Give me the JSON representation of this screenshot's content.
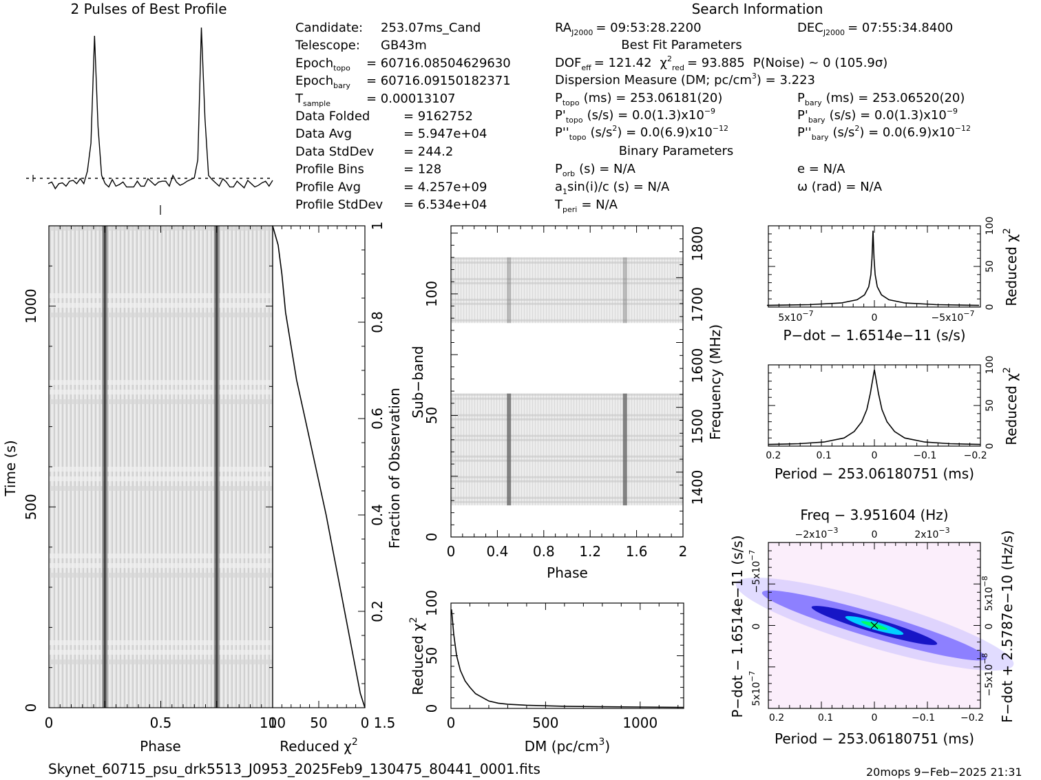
{
  "profile": {
    "title": "2 Pulses of Best Profile",
    "points": [
      0.04,
      0.06,
      0.03,
      0.07,
      0.05,
      0.04,
      0.08,
      0.06,
      0.05,
      0.09,
      0.07,
      0.12,
      0.3,
      0.95,
      0.4,
      0.1,
      0.06,
      0.05,
      0.07,
      0.04,
      0.06,
      0.05,
      0.03,
      0.04,
      0.05,
      0.06,
      0.04,
      0.05,
      0.07,
      0.06,
      0.05,
      0.08,
      0.06,
      0.07,
      0.05,
      0.09,
      0.06,
      0.05,
      0.07,
      0.06,
      0.08,
      0.1,
      0.2,
      1.0,
      0.45,
      0.12,
      0.07,
      0.06,
      0.05,
      0.07,
      0.06,
      0.04,
      0.05,
      0.06,
      0.05,
      0.04,
      0.06,
      0.05,
      0.04,
      0.06,
      0.05,
      0.07,
      0.05,
      0.06
    ]
  },
  "info": {
    "left": [
      {
        "label": "Candidate:",
        "value": "253.07ms_Cand"
      },
      {
        "label": "Telescope:",
        "value": "GB43m"
      },
      {
        "label": "Epoch",
        "sub": "topo",
        "value": "= 60716.08504629630"
      },
      {
        "label": "Epoch",
        "sub": "bary",
        "value": "= 60716.09150182371"
      },
      {
        "label": "T",
        "sub": "sample",
        "value": "=   0.00013107"
      },
      {
        "label": "Data Folded",
        "value": "=   9162752"
      },
      {
        "label": "Data Avg",
        "value": "=   5.947e+04"
      },
      {
        "label": "Data StdDev",
        "value": "=   244.2"
      },
      {
        "label": "Profile Bins",
        "value": "=   128"
      },
      {
        "label": "Profile Avg",
        "value": "=   4.257e+09"
      },
      {
        "label": "Profile StdDev",
        "value": "=   6.534e+04"
      }
    ],
    "search_title": "Search Information",
    "ra": {
      "label": "RA",
      "sub": "J2000",
      "value": "= 09:53:28.2200"
    },
    "dec": {
      "label": "DEC",
      "sub": "J2000",
      "value": "= 07:55:34.8400"
    },
    "best_fit_title": "Best Fit Parameters",
    "dof_line": "DOF",
    "dof_sub": "eff",
    "dof_value": "= 121.42",
    "chi_label": "χ",
    "chi_sup": "2",
    "chi_sub": "red",
    "chi_value": "= 93.885",
    "pnoise": "P(Noise) ~ 0    (105.9σ)",
    "dm_line": "Dispersion Measure (DM; pc/cm",
    "dm_sup": "3",
    "dm_value": ") = 3.223",
    "ptopo_label": "P",
    "ptopo_sub": "topo",
    "ptopo_value": "(ms) =  253.06181(20)",
    "pbary_label": "P",
    "pbary_sub": "bary",
    "pbary_value": "(ms) =  253.06520(20)",
    "pdtopo_label": "P'",
    "pdtopo_sub": "topo",
    "pdtopo_value": "(s/s) = 0.0(1.3)x10",
    "pdtopo_exp": "−9",
    "pdbary_label": "P'",
    "pdbary_sub": "bary",
    "pdbary_value": "(s/s) = 0.0(1.3)x10",
    "pdbary_exp": "−9",
    "pddtopo_label": "P''",
    "pddtopo_sub": "topo",
    "pddtopo_value": "(s/s",
    "pddtopo_sup": "2",
    "pddtopo_value2": ") = 0.0(6.9)x10",
    "pddtopo_exp": "−12",
    "pddbary_label": "P''",
    "pddbary_sub": "bary",
    "pddbary_value": "(s/s",
    "pddbary_sup": "2",
    "pddbary_value2": ") = 0.0(6.9)x10",
    "pddbary_exp": "−12",
    "binary_title": "Binary Parameters",
    "porb_label": "P",
    "porb_sub": "orb",
    "porb_value": "(s) = N/A",
    "e_line": "e = N/A",
    "a1_label": "a",
    "a1_sub": "1",
    "a1_value": "sin(i)/c (s) = N/A",
    "omega_line": "ω (rad) = N/A",
    "tperi_label": "T",
    "tperi_sub": "peri",
    "tperi_value": "= N/A"
  },
  "footer": {
    "filename": "Skynet_60715_psu_drk5513_J0953_2025Feb9_130475_80441_0001.fits",
    "stamp": "20mops   9−Feb−2025 21:31"
  },
  "chart_data": [
    {
      "type": "heatmap",
      "name": "time-phase",
      "xlabel": "Phase",
      "ylabel": "Time (s)",
      "xlim": [
        0,
        2
      ],
      "ylim": [
        0,
        1200
      ],
      "x_ticks": [
        "0",
        "0.5",
        "1",
        "1.5"
      ],
      "y_ticks": [
        "0",
        "500",
        "1000"
      ],
      "pulse_phases": [
        0.5,
        1.5
      ]
    },
    {
      "type": "line",
      "name": "chi-vs-fraction",
      "xlabel": "Reduced χ",
      "xlabel_sup": "2",
      "ylabel": "Fraction of Observation",
      "xlim": [
        100,
        0
      ],
      "ylim": [
        0,
        1
      ],
      "x_ticks": [
        "100",
        "50",
        "0"
      ],
      "y_ticks": [
        "0.2",
        "0.4",
        "0.6",
        "0.8",
        "1"
      ],
      "x": [
        100,
        94,
        90,
        86,
        80,
        74,
        66,
        58,
        50,
        42,
        34,
        26,
        18,
        10,
        5,
        0
      ],
      "y": [
        1.0,
        0.96,
        0.9,
        0.82,
        0.75,
        0.68,
        0.61,
        0.54,
        0.47,
        0.4,
        0.32,
        0.24,
        0.16,
        0.08,
        0.03,
        0.0
      ]
    },
    {
      "type": "heatmap",
      "name": "subband-phase",
      "xlabel": "Phase",
      "ylabel": "Sub−band",
      "ylabel2": "Frequency (MHz)",
      "xlim": [
        0,
        2
      ],
      "ylim": [
        0,
        128
      ],
      "x_ticks": [
        "0",
        "0.4",
        "0.8",
        "1.2",
        "1.6",
        "2"
      ],
      "y_ticks": [
        "0",
        "50",
        "100"
      ],
      "y2_ticks": [
        "1400",
        "1500",
        "1600",
        "1700",
        "1800"
      ],
      "bands": [
        [
          13,
          59
        ],
        [
          88,
          115
        ]
      ]
    },
    {
      "type": "line",
      "name": "dm-curve",
      "xlabel": "DM (pc/cm",
      "xlabel_sup": "3",
      "xlabel_end": ")",
      "ylabel": "Reduced χ",
      "ylabel_sup": "2",
      "xlim": [
        0,
        1230
      ],
      "ylim": [
        0,
        100
      ],
      "x_ticks": [
        "0",
        "500",
        "1000"
      ],
      "y_ticks": [
        "0",
        "50",
        "100"
      ],
      "x": [
        3,
        15,
        30,
        50,
        75,
        100,
        130,
        160,
        200,
        250,
        300,
        400,
        500,
        600,
        800,
        1000,
        1230
      ],
      "y": [
        94,
        70,
        50,
        36,
        26,
        20,
        14,
        11,
        7,
        5,
        4,
        3,
        2.5,
        2,
        1.6,
        1.3,
        1
      ]
    },
    {
      "type": "line",
      "name": "pdot-curve",
      "xlabel": "P−dot − 1.6514e−11 (s/s)",
      "ylabel": "Reduced χ",
      "ylabel_sup": "2",
      "x_ticks": [
        "5x10",
        "0",
        "−5x10"
      ],
      "x_tick_exp": "−7",
      "y_ticks": [
        "0",
        "50",
        "100"
      ],
      "ylim": [
        0,
        100
      ],
      "x": [
        -1,
        -0.6,
        -0.3,
        -0.15,
        -0.08,
        -0.04,
        -0.02,
        -0.01,
        0,
        0.01,
        0.02,
        0.04,
        0.08,
        0.15,
        0.3,
        0.6,
        1
      ],
      "y": [
        2,
        3,
        5,
        9,
        15,
        25,
        40,
        60,
        94,
        60,
        40,
        25,
        15,
        9,
        5,
        3,
        2
      ]
    },
    {
      "type": "line",
      "name": "period-curve",
      "xlabel": "Period − 253.06180751 (ms)",
      "ylabel": "Reduced χ",
      "ylabel_sup": "2",
      "x_ticks": [
        "0.2",
        "0.1",
        "0",
        "−0.1",
        "−0.2"
      ],
      "y_ticks": [
        "0",
        "50",
        "100"
      ],
      "xlim": [
        0.21,
        -0.21
      ],
      "ylim": [
        0,
        100
      ],
      "x": [
        0.21,
        0.15,
        0.1,
        0.06,
        0.04,
        0.025,
        0.015,
        0.008,
        0,
        -0.008,
        -0.015,
        -0.025,
        -0.04,
        -0.06,
        -0.1,
        -0.15,
        -0.21
      ],
      "y": [
        2,
        3,
        5,
        10,
        18,
        30,
        45,
        65,
        94,
        65,
        45,
        30,
        18,
        10,
        5,
        3,
        2
      ]
    },
    {
      "type": "heatmap",
      "name": "period-pdot",
      "title": "Freq − 3.951604 (Hz)",
      "xlabel": "Period − 253.06180751 (ms)",
      "ylabel": "P−dot − 1.6514e−11 (s/s)",
      "ylabel2": "F−dot + 2.5787e−10 (Hz/s)",
      "x_ticks": [
        "0.2",
        "0.1",
        "0",
        "−0.1",
        "−0.2"
      ],
      "top_ticks": [
        "−2x10",
        "0",
        "2x10"
      ],
      "top_tick_exp": "−3",
      "y_ticks": [
        "−5x10",
        "0",
        "5x10"
      ],
      "y_tick_exp": "−7",
      "y2_ticks": [
        "5x10",
        "0",
        "−5x10"
      ],
      "y2_tick_exp": "−8"
    }
  ]
}
